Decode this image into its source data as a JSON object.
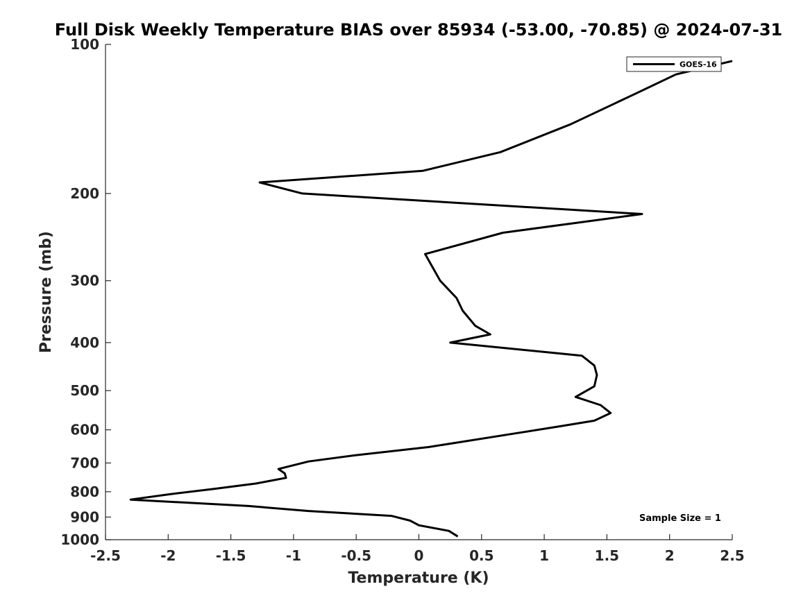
{
  "chart_data": {
    "type": "line",
    "title": "Full Disk Weekly Temperature BIAS over 85934 (-53.00, -70.85) @ 2024-07-31",
    "xlabel": "Temperature (K)",
    "ylabel": "Pressure (mb)",
    "xlim": [
      -2.5,
      2.5
    ],
    "ylim": [
      100,
      1000
    ],
    "y_scale": "log",
    "y_reversed": true,
    "x_ticks": [
      "-2.5",
      "-2",
      "-1.5",
      "-1",
      "-0.5",
      "0",
      "0.5",
      "1",
      "1.5",
      "2",
      "2.5"
    ],
    "x_tick_values": [
      -2.5,
      -2,
      -1.5,
      -1,
      -0.5,
      0,
      0.5,
      1,
      1.5,
      2,
      2.5
    ],
    "y_ticks": [
      "100",
      "200",
      "300",
      "400",
      "500",
      "600",
      "700",
      "800",
      "900",
      "1000"
    ],
    "y_tick_values": [
      100,
      200,
      300,
      400,
      500,
      600,
      700,
      800,
      900,
      1000
    ],
    "grid": false,
    "legend_position": "top-right",
    "series": [
      {
        "name": "GOES-16",
        "color": "#000000",
        "x": [
          2.5,
          2.05,
          1.75,
          1.21,
          0.65,
          0.03,
          -1.27,
          -0.93,
          1.78,
          0.67,
          0.05,
          0.17,
          0.3,
          0.35,
          0.45,
          0.57,
          0.25,
          1.3,
          1.4,
          1.42,
          1.4,
          1.25,
          1.45,
          1.53,
          1.4,
          1.13,
          0.77,
          0.08,
          -0.5,
          -0.88,
          -1.12,
          -1.07,
          -1.06,
          -1.3,
          -1.64,
          -2.0,
          -2.3,
          -1.36,
          -0.88,
          -0.22,
          -0.07,
          0.0,
          0.24,
          0.31
        ],
        "y": [
          108,
          115,
          125,
          145,
          165,
          180,
          190,
          200,
          220,
          240,
          265,
          300,
          325,
          345,
          370,
          385,
          400,
          425,
          445,
          465,
          490,
          515,
          535,
          555,
          575,
          590,
          610,
          650,
          675,
          695,
          720,
          735,
          750,
          770,
          790,
          810,
          830,
          855,
          875,
          895,
          915,
          935,
          960,
          985
        ]
      }
    ],
    "annotations": [
      {
        "text": "Sample Size = 1"
      }
    ]
  }
}
